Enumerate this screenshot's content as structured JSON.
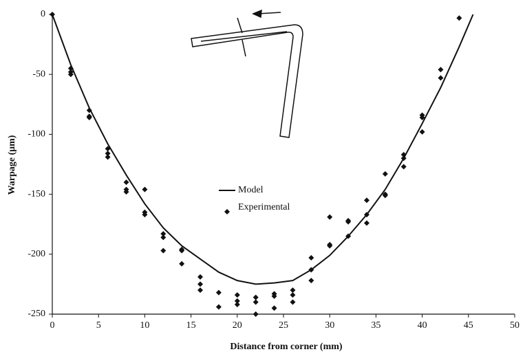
{
  "chart_data": {
    "type": "line",
    "x_label": "Distance from corner (mm)",
    "y_label": "Warpage (μm)",
    "xlim": [
      0,
      50
    ],
    "xticks": [
      0,
      5,
      10,
      15,
      20,
      25,
      30,
      35,
      40,
      45,
      50
    ],
    "ylim": [
      -250,
      0
    ],
    "yticks": [
      0,
      -50,
      -100,
      -150,
      -200,
      -250
    ],
    "grid": false,
    "legend": "center",
    "series": [
      {
        "name": "Model",
        "style": "line",
        "color": "#111111",
        "x": [
          0,
          2,
          4,
          6,
          8,
          10,
          12,
          14,
          16,
          18,
          20,
          22,
          24,
          26,
          28,
          30,
          32,
          34,
          36,
          38,
          40,
          42,
          44,
          45.5
        ],
        "values": [
          0,
          -42,
          -78,
          -108,
          -134,
          -158,
          -178,
          -193,
          -204,
          -215,
          -222,
          -225,
          -224,
          -222,
          -213,
          -201,
          -185,
          -167,
          -146,
          -120,
          -91,
          -61,
          -27,
          0
        ]
      },
      {
        "name": "Experimental",
        "style": "markers",
        "color": "#111111",
        "x": [
          0,
          2,
          2,
          2,
          4,
          4,
          4,
          6,
          6,
          6,
          8,
          8,
          8,
          10,
          10,
          10,
          12,
          12,
          12,
          14,
          14,
          14,
          16,
          16,
          16,
          18,
          18,
          20,
          20,
          20,
          22,
          22,
          22,
          24,
          24,
          24,
          26,
          26,
          26,
          28,
          28,
          28,
          30,
          30,
          30,
          32,
          32,
          32,
          34,
          34,
          34,
          36,
          36,
          36,
          38,
          38,
          38,
          40,
          40,
          40,
          42,
          42,
          44
        ],
        "values": [
          0,
          -45,
          -48,
          -50,
          -80,
          -85,
          -86,
          -112,
          -116,
          -119,
          -140,
          -146,
          -148,
          -146,
          -165,
          -167,
          -183,
          -186,
          -197,
          -196,
          -197,
          -208,
          -219,
          -225,
          -230,
          -232,
          -244,
          -234,
          -239,
          -242,
          -236,
          -240,
          -250,
          -233,
          -235,
          -245,
          -230,
          -234,
          -240,
          -203,
          -213,
          -222,
          -169,
          -192,
          -193,
          -172,
          -173,
          -185,
          -155,
          -167,
          -174,
          -133,
          -150,
          -151,
          -117,
          -120,
          -127,
          -84,
          -86,
          -98,
          -46,
          -53,
          -3
        ]
      }
    ]
  }
}
